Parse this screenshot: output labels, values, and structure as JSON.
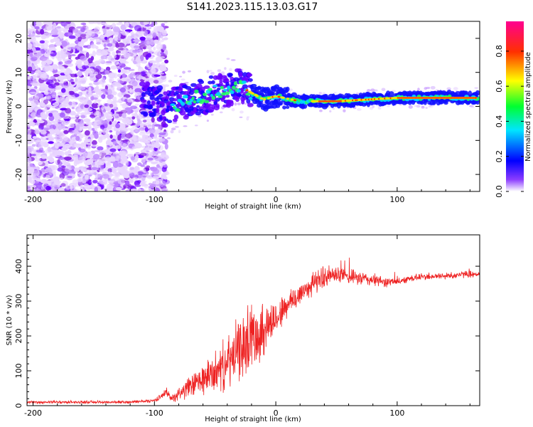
{
  "title": "S141.2023.115.13.03.G17",
  "chart_data": [
    {
      "type": "heatmap",
      "name": "spectrogram",
      "xlabel": "Height of straight line (km)",
      "ylabel": "Frequency (Hz)",
      "xlim": [
        -205,
        168
      ],
      "ylim": [
        -25,
        25
      ],
      "xticks": [
        -200,
        -100,
        0,
        100
      ],
      "yticks": [
        -20,
        -10,
        0,
        10,
        20
      ],
      "description_ridge": [
        {
          "x": -100,
          "y": 2
        },
        {
          "x": -90,
          "y": -1
        },
        {
          "x": -80,
          "y": 1
        },
        {
          "x": -60,
          "y": 3
        },
        {
          "x": -40,
          "y": 5
        },
        {
          "x": -30,
          "y": 6
        },
        {
          "x": -20,
          "y": 4
        },
        {
          "x": -10,
          "y": 2
        },
        {
          "x": 0,
          "y": 3
        },
        {
          "x": 20,
          "y": 1.5
        },
        {
          "x": 50,
          "y": 1.5
        },
        {
          "x": 100,
          "y": 2.5
        },
        {
          "x": 165,
          "y": 2.5
        }
      ],
      "colorbar": {
        "label": "Normalized spectral amplitude",
        "ticks": [
          0.0,
          0.2,
          0.4,
          0.6,
          0.8
        ],
        "range": [
          0,
          0.97
        ],
        "colors": [
          "#ffffff",
          "#6a00ff",
          "#0000ff",
          "#00ffff",
          "#00ff00",
          "#ffff00",
          "#ff0000",
          "#ff00aa"
        ]
      }
    },
    {
      "type": "line",
      "name": "snr",
      "xlabel": "Height of straight line (km)",
      "ylabel": "SNR (10 * v/v)",
      "xlim": [
        -205,
        168
      ],
      "ylim": [
        0,
        490
      ],
      "xticks": [
        -200,
        -100,
        0,
        100
      ],
      "yticks": [
        0,
        100,
        200,
        300,
        400
      ],
      "color": "#ee2222",
      "series": [
        {
          "name": "SNR",
          "x": [
            -205,
            -180,
            -150,
            -120,
            -100,
            -95,
            -90,
            -86,
            -80,
            -70,
            -60,
            -50,
            -40,
            -30,
            -20,
            -10,
            0,
            10,
            20,
            30,
            40,
            50,
            60,
            70,
            80,
            90,
            100,
            110,
            120,
            140,
            160,
            168
          ],
          "y": [
            10,
            10,
            10,
            10,
            15,
            25,
            40,
            20,
            35,
            55,
            75,
            95,
            120,
            160,
            200,
            220,
            250,
            290,
            320,
            350,
            370,
            375,
            370,
            365,
            360,
            355,
            355,
            365,
            370,
            372,
            378,
            378
          ],
          "spread": [
            5,
            5,
            5,
            5,
            6,
            10,
            15,
            10,
            25,
            40,
            55,
            70,
            90,
            110,
            120,
            100,
            60,
            50,
            45,
            40,
            38,
            30,
            25,
            25,
            22,
            18,
            12,
            12,
            12,
            12,
            12,
            12
          ]
        }
      ]
    }
  ]
}
